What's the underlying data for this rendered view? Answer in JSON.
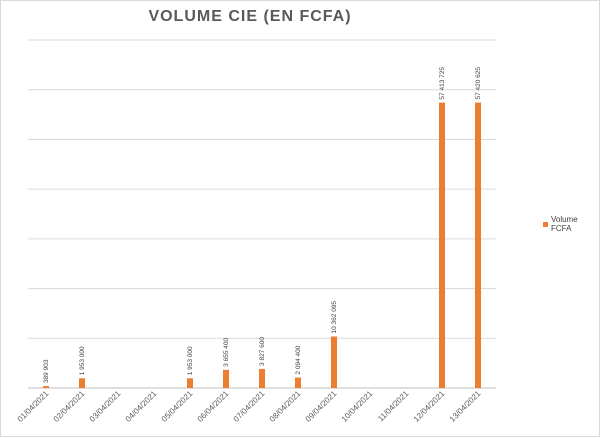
{
  "chart_data": {
    "type": "bar",
    "title": "VOLUME CIE (EN FCFA)",
    "categories": [
      "01/04/2021",
      "02/04/2021",
      "03/04/2021",
      "04/04/2021",
      "05/04/2021",
      "06/04/2021",
      "07/04/2021",
      "08/04/2021",
      "09/04/2021",
      "10/04/2021",
      "11/04/2021",
      "12/04/2021",
      "13/04/2021"
    ],
    "series": [
      {
        "name": "Volume FCFA",
        "color": "#ED7D31",
        "values": [
          389903,
          1953000,
          null,
          null,
          1953000,
          3655400,
          3827600,
          2094400,
          10362095,
          null,
          null,
          57413725,
          57420625
        ],
        "labels": [
          "389 903",
          "1 953 000",
          "",
          "",
          "1 953 000",
          "3 655 400",
          "3 827 600",
          "2 094 400",
          "10 362 095",
          "",
          "",
          "57 413 725",
          "57 420 625"
        ]
      }
    ],
    "ylim": [
      0,
      70000000
    ],
    "y_gridlines": [
      0,
      10000000,
      20000000,
      30000000,
      40000000,
      50000000,
      60000000,
      70000000
    ],
    "show_y_tick_labels": false,
    "grid": true,
    "legend": "right"
  }
}
